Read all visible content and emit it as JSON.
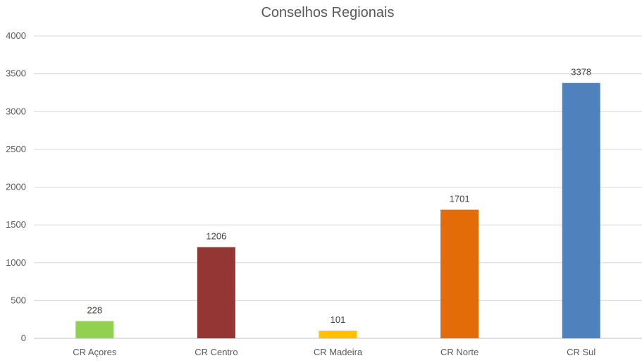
{
  "chart_data": {
    "type": "bar",
    "title": "Conselhos Regionais",
    "categories": [
      "CR Açores",
      "CR Centro",
      "CR Madeira",
      "CR Norte",
      "CR Sul"
    ],
    "values": [
      228,
      1206,
      101,
      1701,
      3378
    ],
    "colors": [
      "#92d050",
      "#943634",
      "#ffc000",
      "#e36c09",
      "#4f81bd"
    ],
    "ylim": [
      0,
      4000
    ],
    "yticks": [
      "0",
      "500",
      "1000",
      "1500",
      "2000",
      "2500",
      "3000",
      "3500",
      "4000"
    ],
    "grid": true,
    "legend": "none",
    "data_labels": [
      "228",
      "1206",
      "101",
      "1701",
      "3378"
    ]
  }
}
